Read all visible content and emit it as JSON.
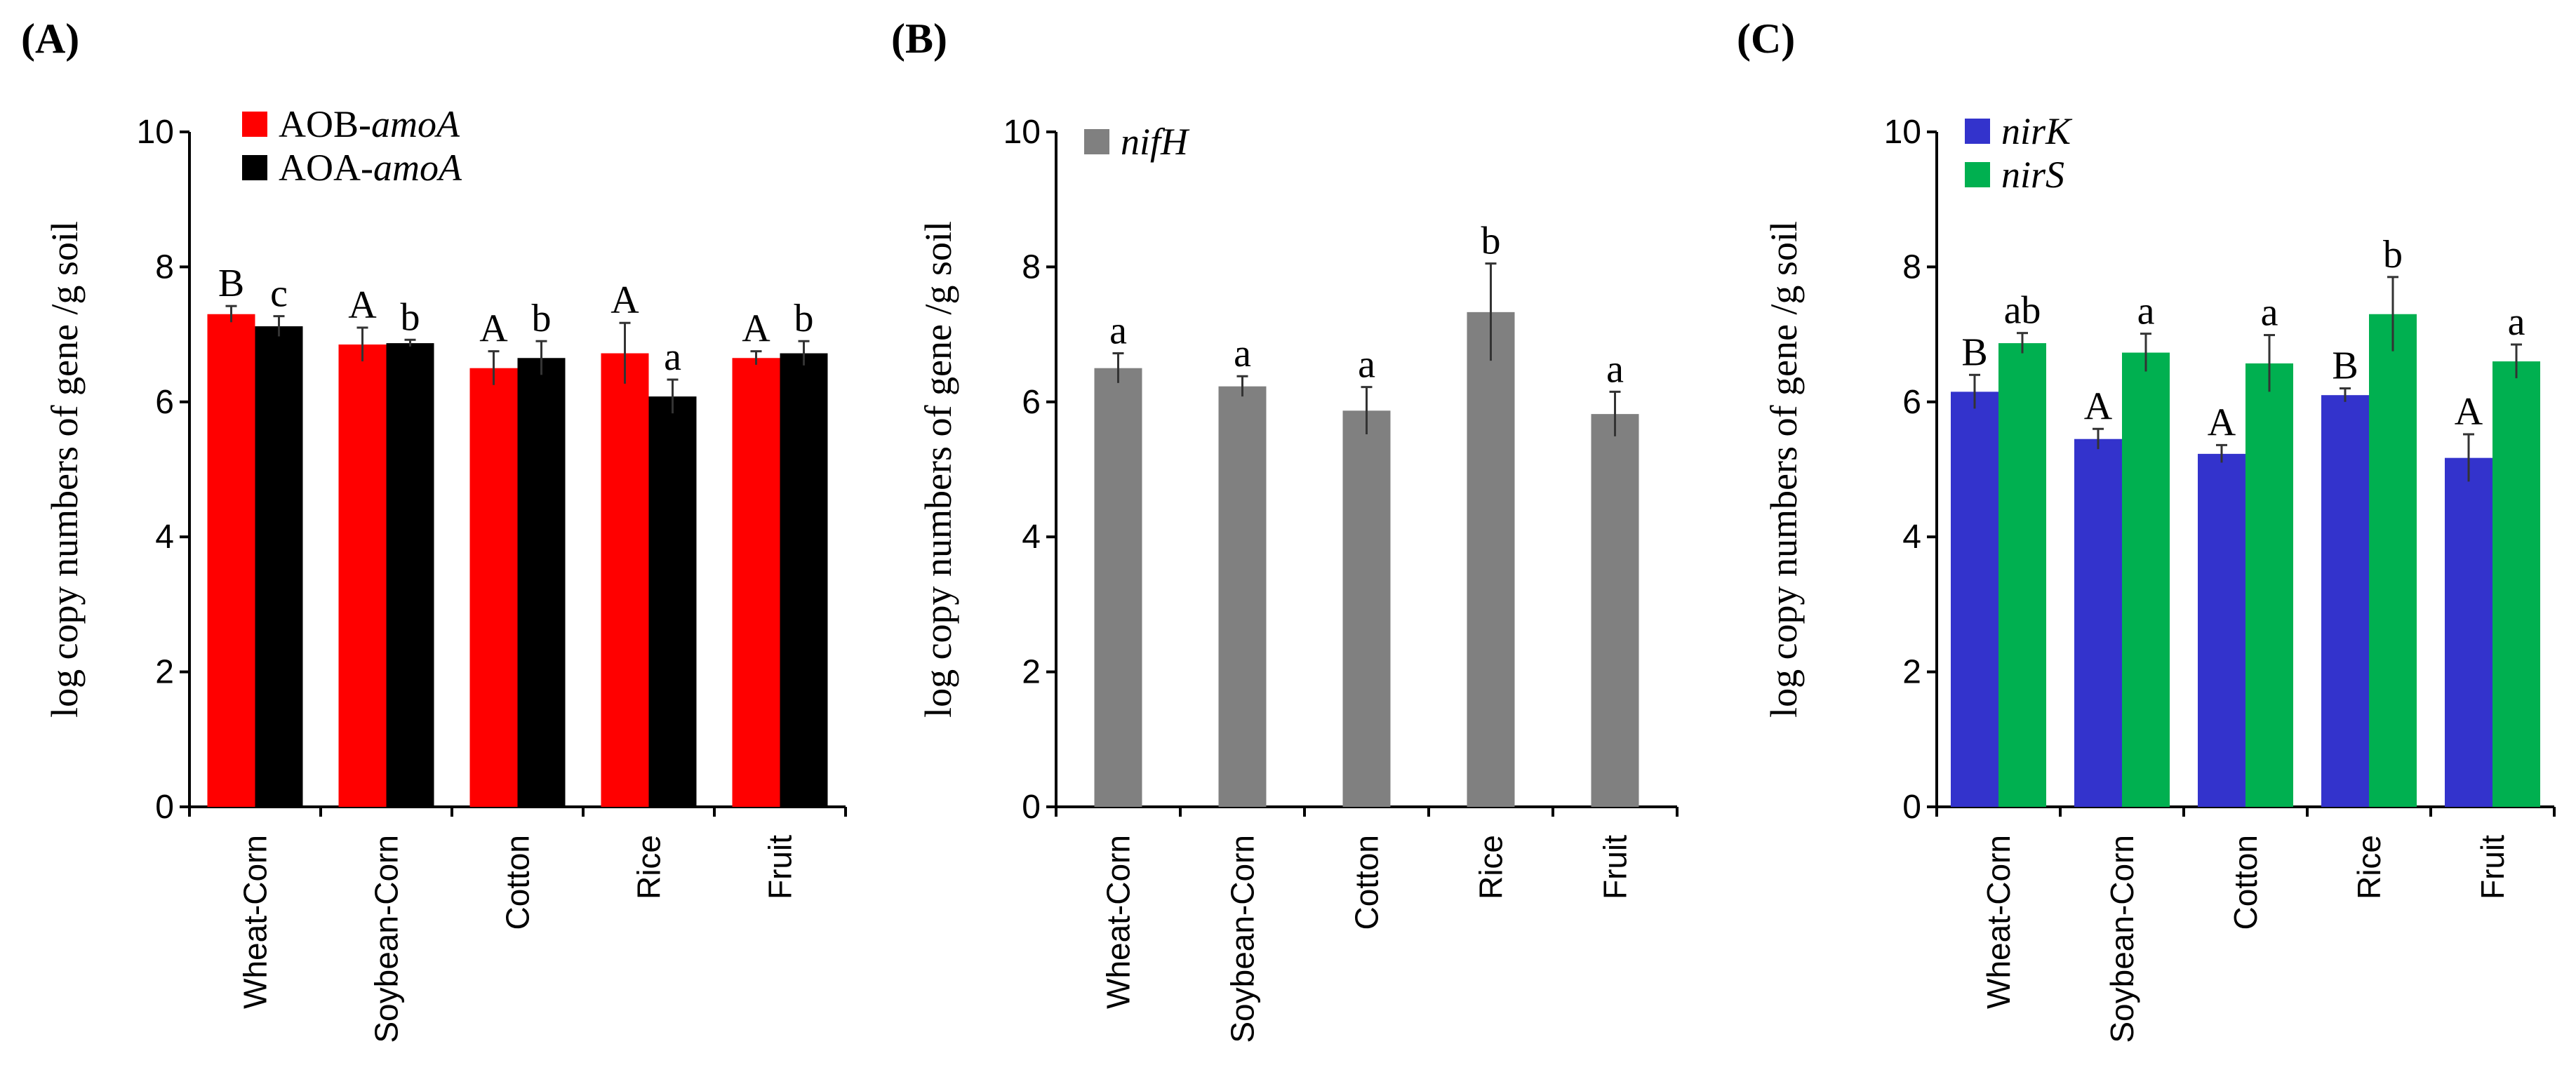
{
  "chart_data": [
    {
      "type": "bar",
      "panel_label": "(A)",
      "categories": [
        "Wheat-Corn",
        "Soybean-Corn",
        "Cotton",
        "Rice",
        "Fruit"
      ],
      "ylabel": "log copy numbers of  gene /g soil",
      "ylim": [
        0,
        10
      ],
      "yticks": [
        "0",
        "2",
        "4",
        "6",
        "8",
        "10"
      ],
      "legend_position": "top-left",
      "series": [
        {
          "name": "AOB-",
          "name_italic": "amoA",
          "color": "#ff0000",
          "values": [
            7.3,
            6.85,
            6.5,
            6.72,
            6.65
          ],
          "errors": [
            0.12,
            0.25,
            0.25,
            0.45,
            0.1
          ],
          "letters": [
            "B",
            "A",
            "A",
            "A",
            "A"
          ]
        },
        {
          "name": "AOA-",
          "name_italic": "amoA",
          "color": "#000000",
          "values": [
            7.12,
            6.87,
            6.65,
            6.08,
            6.72
          ],
          "errors": [
            0.15,
            0.05,
            0.25,
            0.25,
            0.18
          ],
          "letters": [
            "c",
            "b",
            "b",
            "a",
            "b"
          ]
        }
      ]
    },
    {
      "type": "bar",
      "panel_label": "(B)",
      "categories": [
        "Wheat-Corn",
        "Soybean-Corn",
        "Cotton",
        "Rice",
        "Fruit"
      ],
      "ylabel": "log copy numbers of  gene /g soil",
      "ylim": [
        0,
        10
      ],
      "yticks": [
        "0",
        "2",
        "4",
        "6",
        "8",
        "10"
      ],
      "legend_position": "top-left",
      "series": [
        {
          "name": "",
          "name_italic": "nifH",
          "color": "#808080",
          "values": [
            6.5,
            6.23,
            5.87,
            7.33,
            5.82
          ],
          "errors": [
            0.22,
            0.15,
            0.35,
            0.72,
            0.33
          ],
          "letters": [
            "a",
            "a",
            "a",
            "b",
            "a"
          ]
        }
      ]
    },
    {
      "type": "bar",
      "panel_label": "(C)",
      "categories": [
        "Wheat-Corn",
        "Soybean-Corn",
        "Cotton",
        "Rice",
        "Fruit"
      ],
      "ylabel": "log copy numbers of  gene /g soil",
      "ylim": [
        0,
        10
      ],
      "yticks": [
        "0",
        "2",
        "4",
        "6",
        "8",
        "10"
      ],
      "legend_position": "top-left",
      "series": [
        {
          "name": "",
          "name_italic": "nirK",
          "color": "#3333cc",
          "values": [
            6.15,
            5.45,
            5.23,
            6.1,
            5.17
          ],
          "errors": [
            0.25,
            0.15,
            0.13,
            0.1,
            0.35
          ],
          "letters": [
            "B",
            "A",
            "A",
            "B",
            "A"
          ]
        },
        {
          "name": "",
          "name_italic": "nirS",
          "color": "#00b050",
          "values": [
            6.87,
            6.73,
            6.57,
            7.3,
            6.6
          ],
          "errors": [
            0.15,
            0.28,
            0.42,
            0.55,
            0.25
          ],
          "letters": [
            "ab",
            "a",
            "a",
            "b",
            "a"
          ]
        }
      ]
    }
  ]
}
